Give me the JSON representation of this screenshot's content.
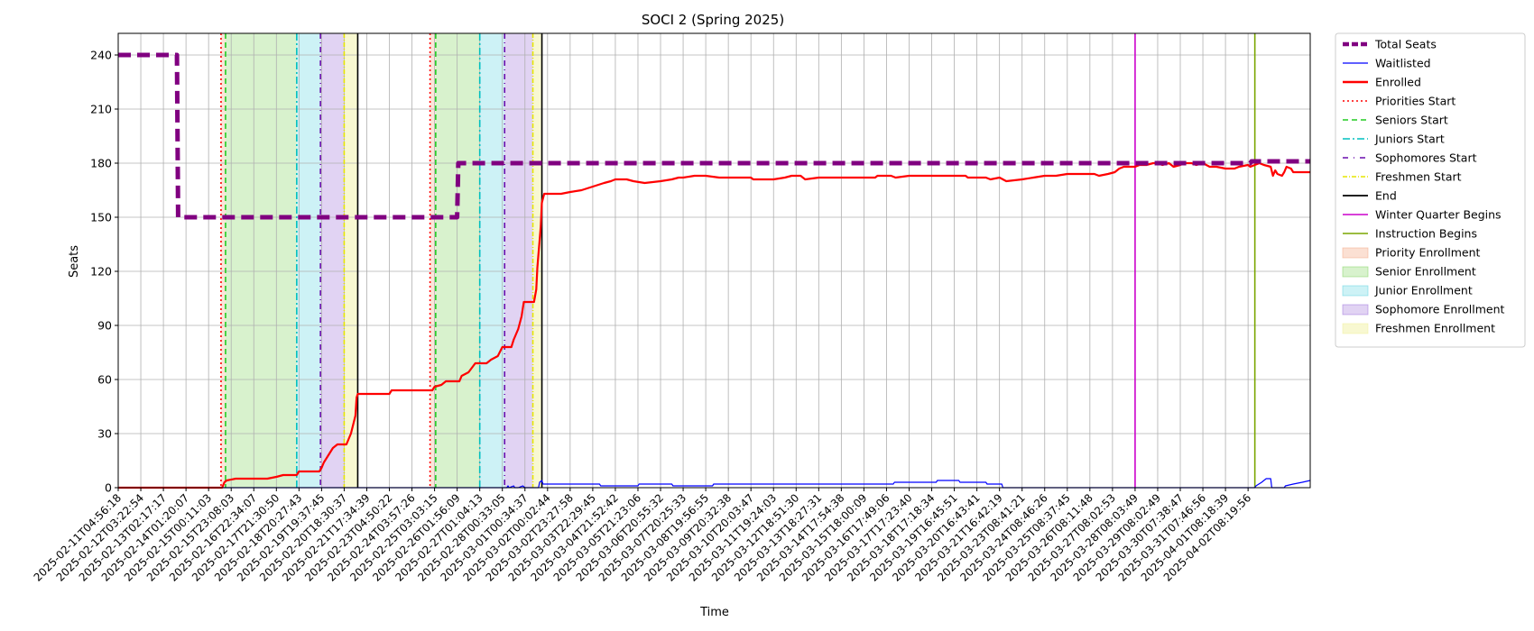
{
  "chart_data": {
    "type": "line",
    "title": "SOCI 2 (Spring 2025)",
    "xlabel": "Time",
    "ylabel": "Seats",
    "ylim": [
      0,
      252
    ],
    "yticks": [
      0,
      30,
      60,
      90,
      120,
      150,
      180,
      210,
      240
    ],
    "grid": true,
    "legend_position": "outside-right",
    "x_tick_labels": [
      "2025-02-11T04:56:18",
      "2025-02-12T03:22:54",
      "2025-02-13T02:17:17",
      "2025-02-14T01:20:07",
      "2025-02-15T00:11:03",
      "2025-02-15T23:08:03",
      "2025-02-16T22:34:07",
      "2025-02-17T21:30:50",
      "2025-02-18T20:27:43",
      "2025-02-19T19:37:45",
      "2025-02-20T18:30:37",
      "2025-02-21T17:34:39",
      "2025-02-23T04:50:22",
      "2025-02-24T03:57:26",
      "2025-02-25T03:03:15",
      "2025-02-26T01:56:09",
      "2025-02-27T01:04:13",
      "2025-02-28T00:33:05",
      "2025-03-01T00:34:37",
      "2025-03-02T00:02:44",
      "2025-03-02T23:27:58",
      "2025-03-03T22:29:45",
      "2025-03-04T21:52:42",
      "2025-03-05T21:23:06",
      "2025-03-06T20:55:32",
      "2025-03-07T20:25:33",
      "2025-03-08T19:56:55",
      "2025-03-09T20:32:38",
      "2025-03-10T20:03:47",
      "2025-03-11T19:24:03",
      "2025-03-12T18:51:30",
      "2025-03-13T18:27:31",
      "2025-03-14T17:54:38",
      "2025-03-15T18:00:09",
      "2025-03-16T17:49:06",
      "2025-03-17T17:23:40",
      "2025-03-18T17:18:34",
      "2025-03-19T16:45:51",
      "2025-03-20T16:43:41",
      "2025-03-21T16:42:19",
      "2025-03-23T08:41:21",
      "2025-03-24T08:46:26",
      "2025-03-25T08:37:45",
      "2025-03-26T08:11:48",
      "2025-03-27T08:02:53",
      "2025-03-28T08:03:49",
      "2025-03-29T08:02:49",
      "2025-03-30T07:38:47",
      "2025-03-31T07:46:56",
      "2025-04-01T08:18:39",
      "2025-04-02T08:19:56"
    ],
    "x_index_range": [
      0,
      52.75
    ],
    "series": [
      {
        "name": "Total Seats",
        "color": "#800080",
        "style": "dashed-thick",
        "points": [
          [
            0,
            240
          ],
          [
            2.6,
            240
          ],
          [
            2.65,
            150
          ],
          [
            15.0,
            150
          ],
          [
            15.05,
            180
          ],
          [
            52.75,
            180
          ],
          [
            50.1,
            180
          ],
          [
            50.15,
            181
          ],
          [
            52.75,
            181
          ]
        ]
      },
      {
        "name": "Waitlisted",
        "color": "#0000ff",
        "style": "solid",
        "points": [
          [
            0,
            0
          ],
          [
            17.2,
            0
          ],
          [
            17.25,
            1
          ],
          [
            17.3,
            0
          ],
          [
            17.5,
            1
          ],
          [
            17.55,
            0
          ],
          [
            17.7,
            0
          ],
          [
            17.9,
            1
          ],
          [
            18.0,
            0
          ],
          [
            18.6,
            0
          ],
          [
            18.65,
            3
          ],
          [
            18.75,
            4
          ],
          [
            18.8,
            2
          ],
          [
            21.3,
            2
          ],
          [
            21.35,
            1
          ],
          [
            23.0,
            1
          ],
          [
            23.05,
            2
          ],
          [
            24.5,
            2
          ],
          [
            24.55,
            1
          ],
          [
            26.3,
            1
          ],
          [
            26.35,
            2
          ],
          [
            34.3,
            2
          ],
          [
            34.35,
            3
          ],
          [
            36.2,
            3
          ],
          [
            36.25,
            4
          ],
          [
            37.2,
            4
          ],
          [
            37.25,
            3
          ],
          [
            38.4,
            3
          ],
          [
            38.45,
            2
          ],
          [
            39.1,
            2
          ],
          [
            39.15,
            0
          ],
          [
            50.3,
            0
          ],
          [
            50.35,
            1
          ],
          [
            50.6,
            3
          ],
          [
            50.8,
            5
          ],
          [
            51.0,
            5
          ],
          [
            51.05,
            0
          ],
          [
            51.6,
            0
          ],
          [
            51.65,
            1
          ],
          [
            52.0,
            2
          ],
          [
            52.4,
            3
          ],
          [
            52.75,
            4
          ]
        ]
      },
      {
        "name": "Enrolled",
        "color": "#ff0000",
        "style": "solid-thick",
        "points": [
          [
            0,
            0
          ],
          [
            4.6,
            0
          ],
          [
            4.7,
            3
          ],
          [
            4.8,
            4
          ],
          [
            5.2,
            5
          ],
          [
            6.6,
            5
          ],
          [
            7.0,
            6
          ],
          [
            7.3,
            7
          ],
          [
            7.9,
            7
          ],
          [
            8.0,
            9
          ],
          [
            8.9,
            9
          ],
          [
            9.0,
            11
          ],
          [
            9.1,
            14
          ],
          [
            9.3,
            18
          ],
          [
            9.5,
            22
          ],
          [
            9.7,
            24
          ],
          [
            10.1,
            24
          ],
          [
            10.2,
            27
          ],
          [
            10.3,
            30
          ],
          [
            10.4,
            35
          ],
          [
            10.5,
            40
          ],
          [
            10.55,
            50
          ],
          [
            10.6,
            52
          ],
          [
            12.0,
            52
          ],
          [
            12.1,
            54
          ],
          [
            13.9,
            54
          ],
          [
            14.0,
            56
          ],
          [
            14.3,
            57
          ],
          [
            14.5,
            59
          ],
          [
            15.1,
            59
          ],
          [
            15.2,
            62
          ],
          [
            15.5,
            64
          ],
          [
            15.8,
            69
          ],
          [
            16.3,
            69
          ],
          [
            16.5,
            71
          ],
          [
            16.8,
            73
          ],
          [
            17.0,
            78
          ],
          [
            17.4,
            78
          ],
          [
            17.5,
            82
          ],
          [
            17.7,
            88
          ],
          [
            17.85,
            95
          ],
          [
            17.95,
            103
          ],
          [
            18.4,
            103
          ],
          [
            18.5,
            110
          ],
          [
            18.55,
            122
          ],
          [
            18.6,
            130
          ],
          [
            18.7,
            145
          ],
          [
            18.75,
            158
          ],
          [
            18.85,
            163
          ],
          [
            19.3,
            163
          ],
          [
            19.6,
            163
          ],
          [
            20.0,
            164
          ],
          [
            20.5,
            165
          ],
          [
            21.0,
            167
          ],
          [
            21.5,
            169
          ],
          [
            21.8,
            170
          ],
          [
            22.0,
            171
          ],
          [
            22.5,
            171
          ],
          [
            22.8,
            170
          ],
          [
            23.3,
            169
          ],
          [
            24.0,
            170
          ],
          [
            24.5,
            171
          ],
          [
            24.8,
            172
          ],
          [
            25.0,
            172
          ],
          [
            25.5,
            173
          ],
          [
            26.0,
            173
          ],
          [
            26.6,
            172
          ],
          [
            28.0,
            172
          ],
          [
            28.1,
            171
          ],
          [
            29.0,
            171
          ],
          [
            29.5,
            172
          ],
          [
            29.8,
            173
          ],
          [
            30.2,
            173
          ],
          [
            30.4,
            171
          ],
          [
            31.0,
            172
          ],
          [
            33.5,
            172
          ],
          [
            33.6,
            173
          ],
          [
            34.2,
            173
          ],
          [
            34.4,
            172
          ],
          [
            35.0,
            173
          ],
          [
            37.5,
            173
          ],
          [
            37.6,
            172
          ],
          [
            38.4,
            172
          ],
          [
            38.6,
            171
          ],
          [
            39.0,
            172
          ],
          [
            39.3,
            170
          ],
          [
            40.0,
            171
          ],
          [
            40.5,
            172
          ],
          [
            41.0,
            173
          ],
          [
            41.5,
            173
          ],
          [
            42.0,
            174
          ],
          [
            43.2,
            174
          ],
          [
            43.4,
            173
          ],
          [
            43.8,
            174
          ],
          [
            44.1,
            175
          ],
          [
            44.3,
            177
          ],
          [
            44.5,
            178
          ],
          [
            45.0,
            178
          ],
          [
            45.2,
            179
          ],
          [
            45.5,
            179
          ],
          [
            45.8,
            180
          ],
          [
            46.0,
            180
          ],
          [
            46.2,
            179
          ],
          [
            46.5,
            180
          ],
          [
            46.7,
            178
          ],
          [
            47.0,
            179
          ],
          [
            47.2,
            180
          ],
          [
            47.5,
            180
          ],
          [
            47.7,
            179
          ],
          [
            48.0,
            180
          ],
          [
            48.3,
            178
          ],
          [
            48.6,
            178
          ],
          [
            49.0,
            177
          ],
          [
            49.4,
            177
          ],
          [
            49.6,
            178
          ],
          [
            50.0,
            179
          ],
          [
            50.1,
            178
          ],
          [
            50.3,
            179
          ],
          [
            50.5,
            180
          ],
          [
            50.7,
            179
          ],
          [
            51.0,
            178
          ],
          [
            51.1,
            173
          ],
          [
            51.2,
            176
          ],
          [
            51.3,
            174
          ],
          [
            51.5,
            173
          ],
          [
            51.6,
            175
          ],
          [
            51.7,
            178
          ],
          [
            51.9,
            177
          ],
          [
            52.0,
            175
          ],
          [
            52.75,
            175
          ]
        ]
      }
    ],
    "shaded_regions": [
      {
        "name": "Priority Enrollment",
        "color": "#f4a582",
        "opacity": 0.3,
        "start": 4.55,
        "end": 4.75
      },
      {
        "name": "Senior Enrollment",
        "color": "#7fd45a",
        "opacity": 0.3,
        "start": 4.75,
        "end": 7.9
      },
      {
        "name": "Junior Enrollment",
        "color": "#5ad4e0",
        "opacity": 0.3,
        "start": 7.9,
        "end": 8.95
      },
      {
        "name": "Sophomore Enrollment",
        "color": "#9b6ed8",
        "opacity": 0.3,
        "start": 8.95,
        "end": 10.0
      },
      {
        "name": "Freshmen Enrollment",
        "color": "#f0f09a",
        "opacity": 0.45,
        "start": 10.0,
        "end": 10.6
      },
      {
        "name": "Priority Enrollment",
        "color": "#f4a582",
        "opacity": 0.3,
        "start": 13.8,
        "end": 14.05
      },
      {
        "name": "Senior Enrollment",
        "color": "#7fd45a",
        "opacity": 0.3,
        "start": 14.05,
        "end": 16.0
      },
      {
        "name": "Junior Enrollment",
        "color": "#5ad4e0",
        "opacity": 0.3,
        "start": 16.0,
        "end": 17.1
      },
      {
        "name": "Sophomore Enrollment",
        "color": "#9b6ed8",
        "opacity": 0.3,
        "start": 17.1,
        "end": 18.35
      },
      {
        "name": "Freshmen Enrollment",
        "color": "#f0f09a",
        "opacity": 0.45,
        "start": 18.35,
        "end": 18.75
      }
    ],
    "vertical_markers": [
      {
        "name": "Priorities Start",
        "color": "#ff0000",
        "dash": "2,3",
        "x": 4.55
      },
      {
        "name": "Seniors Start",
        "color": "#22cc22",
        "dash": "6,4",
        "x": 4.75
      },
      {
        "name": "Juniors Start",
        "color": "#00bfbf",
        "dash": "8,3,2,3",
        "x": 7.9
      },
      {
        "name": "Sophomores Start",
        "color": "#6a0dad",
        "dash": "6,4,1,4",
        "x": 8.95
      },
      {
        "name": "Freshmen Start",
        "color": "#e6e600",
        "dash": "5,2,1,2",
        "x": 10.0
      },
      {
        "name": "End",
        "color": "#000000",
        "dash": "",
        "x": 10.6
      },
      {
        "name": "Priorities Start",
        "color": "#ff0000",
        "dash": "2,3",
        "x": 13.8
      },
      {
        "name": "Seniors Start",
        "color": "#22cc22",
        "dash": "6,4",
        "x": 14.05
      },
      {
        "name": "Juniors Start",
        "color": "#00bfbf",
        "dash": "8,3,2,3",
        "x": 16.0
      },
      {
        "name": "Sophomores Start",
        "color": "#6a0dad",
        "dash": "6,4,1,4",
        "x": 17.1
      },
      {
        "name": "Freshmen Start",
        "color": "#e6e600",
        "dash": "5,2,1,2",
        "x": 18.35
      },
      {
        "name": "End",
        "color": "#000000",
        "dash": "",
        "x": 18.75
      },
      {
        "name": "Winter Quarter Begins",
        "color": "#cc00cc",
        "dash": "",
        "x": 45.0
      },
      {
        "name": "Instruction Begins",
        "color": "#7aa600",
        "dash": "",
        "x": 50.3
      }
    ],
    "legend": [
      {
        "label": "Total Seats",
        "kind": "line",
        "color": "#800080",
        "dash": "7,3",
        "width": 4.5
      },
      {
        "label": "Waitlisted",
        "kind": "line",
        "color": "#0000ff",
        "dash": "",
        "width": 1.2
      },
      {
        "label": "Enrolled",
        "kind": "line",
        "color": "#ff0000",
        "dash": "",
        "width": 2.4
      },
      {
        "label": "Priorities Start",
        "kind": "line",
        "color": "#ff0000",
        "dash": "2,3",
        "width": 1.5
      },
      {
        "label": "Seniors Start",
        "kind": "line",
        "color": "#22cc22",
        "dash": "6,4",
        "width": 1.5
      },
      {
        "label": "Juniors Start",
        "kind": "line",
        "color": "#00bfbf",
        "dash": "8,3,2,3",
        "width": 1.5
      },
      {
        "label": "Sophomores Start",
        "kind": "line",
        "color": "#6a0dad",
        "dash": "6,6,1,6",
        "width": 1.5
      },
      {
        "label": "Freshmen Start",
        "kind": "line",
        "color": "#e6e600",
        "dash": "5,2,1,2",
        "width": 1.5
      },
      {
        "label": "End",
        "kind": "line",
        "color": "#000000",
        "dash": "",
        "width": 1.8
      },
      {
        "label": "Winter Quarter Begins",
        "kind": "line",
        "color": "#cc00cc",
        "dash": "",
        "width": 1.5
      },
      {
        "label": "Instruction Begins",
        "kind": "line",
        "color": "#7aa600",
        "dash": "",
        "width": 1.5
      },
      {
        "label": "Priority Enrollment",
        "kind": "patch",
        "color": "#f4a582",
        "opacity": 0.35
      },
      {
        "label": "Senior Enrollment",
        "kind": "patch",
        "color": "#7fd45a",
        "opacity": 0.3
      },
      {
        "label": "Junior Enrollment",
        "kind": "patch",
        "color": "#5ad4e0",
        "opacity": 0.3
      },
      {
        "label": "Sophomore Enrollment",
        "kind": "patch",
        "color": "#9b6ed8",
        "opacity": 0.3
      },
      {
        "label": "Freshmen Enrollment",
        "kind": "patch",
        "color": "#f0f09a",
        "opacity": 0.45
      }
    ]
  }
}
